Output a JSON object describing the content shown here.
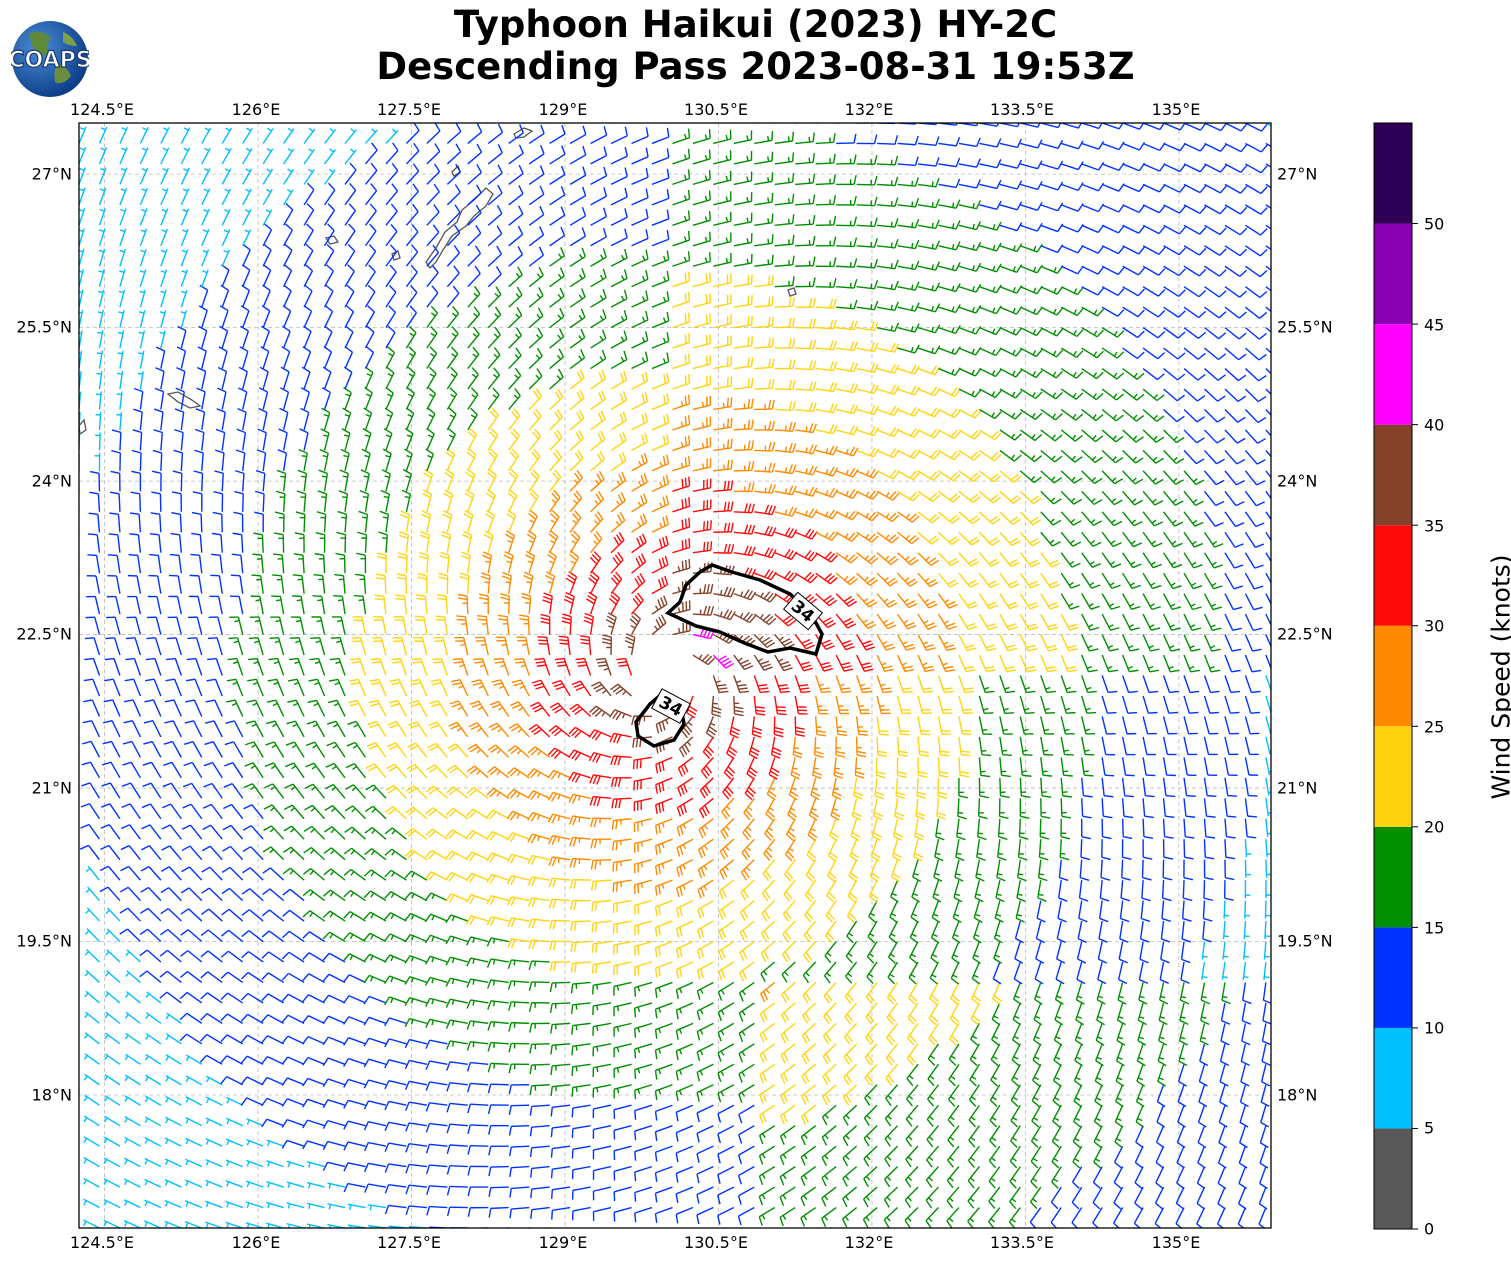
{
  "title": {
    "line1": "Typhoon Haikui (2023) HY-2C",
    "line2": "Descending Pass 2023-08-31 19:53Z"
  },
  "logo": {
    "text": "COAPS"
  },
  "axes": {
    "lon_ticks": [
      "124.5°E",
      "126°E",
      "127.5°E",
      "129°E",
      "130.5°E",
      "132°E",
      "133.5°E",
      "135°E"
    ],
    "lat_ticks": [
      "27°N",
      "25.5°N",
      "24°N",
      "22.5°N",
      "21°N",
      "19.5°N",
      "18°N"
    ],
    "lon_range": [
      124.25,
      135.9
    ],
    "lat_range": [
      16.7,
      27.5
    ],
    "grid": true
  },
  "colorbar": {
    "label": "Wind Speed (knots)",
    "ticks": [
      "0",
      "5",
      "10",
      "15",
      "20",
      "25",
      "30",
      "35",
      "40",
      "45",
      "50"
    ],
    "bins": [
      {
        "min": 0,
        "max": 5,
        "color": "#595959"
      },
      {
        "min": 5,
        "max": 10,
        "color": "#00bfff"
      },
      {
        "min": 10,
        "max": 15,
        "color": "#0033ff"
      },
      {
        "min": 15,
        "max": 20,
        "color": "#008f00"
      },
      {
        "min": 20,
        "max": 25,
        "color": "#ffd40f"
      },
      {
        "min": 25,
        "max": 30,
        "color": "#ff8a00"
      },
      {
        "min": 30,
        "max": 35,
        "color": "#ff0a0a"
      },
      {
        "min": 35,
        "max": 40,
        "color": "#86412b"
      },
      {
        "min": 40,
        "max": 45,
        "color": "#ff00ff"
      },
      {
        "min": 45,
        "max": 50,
        "color": "#8a00b3"
      },
      {
        "min": 50,
        "max": 55,
        "color": "#2d0055"
      }
    ]
  },
  "storm": {
    "center_lon": 130.0,
    "center_lat": 22.1,
    "contour_label": "34"
  }
}
